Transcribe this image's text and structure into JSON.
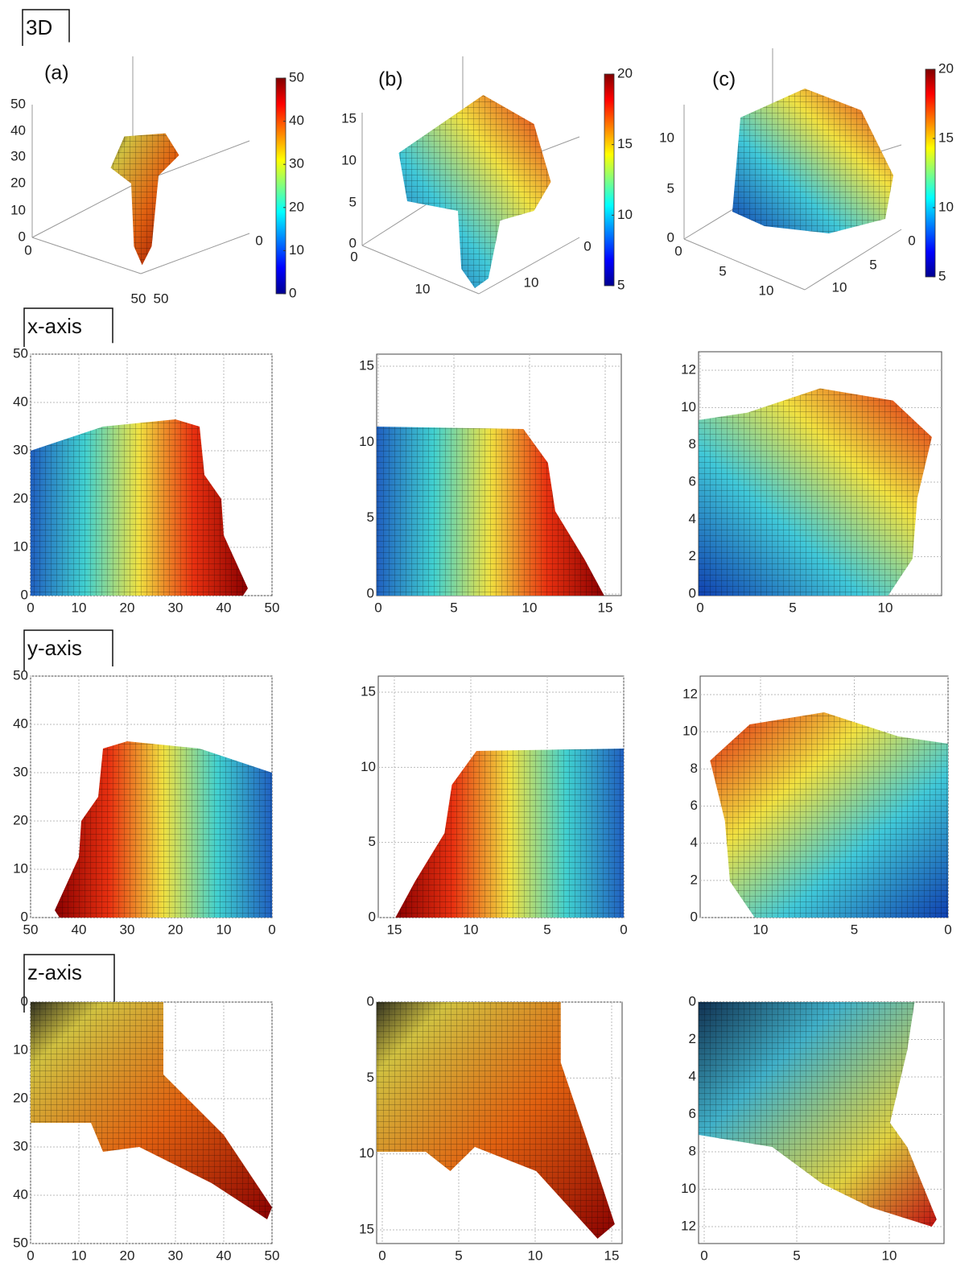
{
  "rows": [
    {
      "label": "3D",
      "panels": [
        {
          "label": "(a)",
          "zticks": [
            50,
            40,
            30,
            20,
            10,
            0
          ],
          "floor_ticks": [
            0,
            50,
            50,
            0
          ],
          "colorbar_ticks": [
            50,
            40,
            30,
            20,
            10,
            0
          ]
        },
        {
          "label": "(b)",
          "zticks": [
            15,
            10,
            5,
            0
          ],
          "floor_ticks": [
            0,
            10,
            10,
            0
          ],
          "colorbar_ticks": [
            20,
            15,
            10,
            5
          ]
        },
        {
          "label": "(c)",
          "zticks": [
            10,
            5,
            0
          ],
          "floor_ticks": [
            0,
            5,
            10,
            10,
            5,
            0
          ],
          "colorbar_ticks": [
            20,
            15,
            10,
            5
          ]
        }
      ]
    },
    {
      "label": "x-axis",
      "panels": [
        {
          "xticks": [
            0,
            10,
            20,
            30,
            40,
            50
          ],
          "yticks": [
            0,
            10,
            20,
            30,
            40,
            50
          ]
        },
        {
          "xticks": [
            0,
            5,
            10,
            15
          ],
          "yticks": [
            0,
            5,
            10,
            15
          ]
        },
        {
          "xticks": [
            0,
            5,
            10
          ],
          "yticks": [
            0,
            2,
            4,
            6,
            8,
            10,
            12
          ]
        }
      ]
    },
    {
      "label": "y-axis",
      "panels": [
        {
          "xticks": [
            50,
            40,
            30,
            20,
            10,
            0
          ],
          "yticks": [
            0,
            10,
            20,
            30,
            40,
            50
          ]
        },
        {
          "xticks": [
            15,
            10,
            5,
            0
          ],
          "yticks": [
            0,
            5,
            10,
            15
          ]
        },
        {
          "xticks": [
            10,
            5,
            0
          ],
          "yticks": [
            0,
            2,
            4,
            6,
            8,
            10,
            12
          ]
        }
      ]
    },
    {
      "label": "z-axis",
      "panels": [
        {
          "xticks": [
            0,
            10,
            20,
            30,
            40,
            50
          ],
          "yticks": [
            0,
            10,
            20,
            30,
            40,
            50
          ]
        },
        {
          "xticks": [
            0,
            5,
            10,
            15
          ],
          "yticks": [
            0,
            5,
            10,
            15
          ]
        },
        {
          "xticks": [
            0,
            5,
            10
          ],
          "yticks": [
            0,
            2,
            4,
            6,
            8,
            10,
            12
          ]
        }
      ]
    }
  ]
}
